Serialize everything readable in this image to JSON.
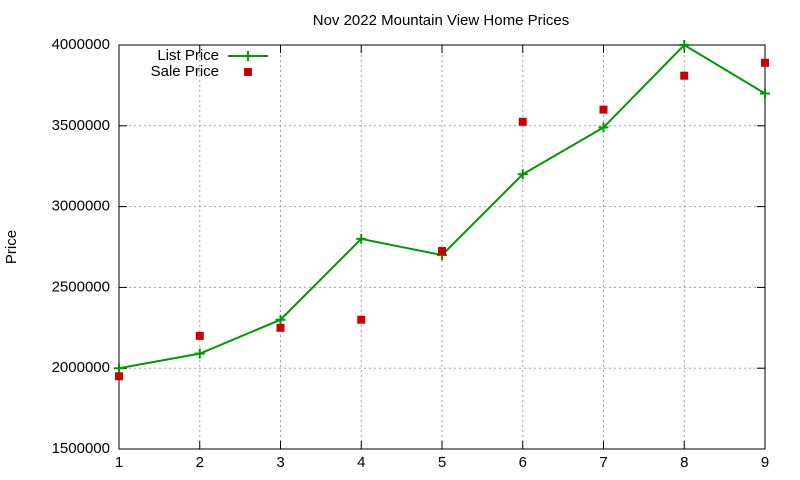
{
  "chart_data": {
    "type": "line",
    "title": "Nov 2022 Mountain View Home Prices",
    "y_label": "Price",
    "x": [
      1,
      2,
      3,
      4,
      5,
      6,
      7,
      8,
      9
    ],
    "series": [
      {
        "name": "List Price",
        "color": "#009900",
        "line": true,
        "marker": "plus",
        "values": [
          2000000,
          2090000,
          2300000,
          2800000,
          2700000,
          3200000,
          3490000,
          4000000,
          3700000
        ]
      },
      {
        "name": "Sale Price",
        "color": "#cc0000",
        "line": false,
        "marker": "square",
        "values": [
          1950000,
          2200000,
          2250000,
          2300000,
          2725000,
          3525000,
          3600000,
          3810000,
          3890000
        ]
      }
    ],
    "xlim": [
      1,
      9
    ],
    "xticks": [
      1,
      2,
      3,
      4,
      5,
      6,
      7,
      8,
      9
    ],
    "ylim": [
      1500000,
      4000000
    ],
    "yticks": [
      1500000,
      2000000,
      2500000,
      3000000,
      3500000,
      4000000
    ],
    "grid": true,
    "legend": "top-left"
  }
}
